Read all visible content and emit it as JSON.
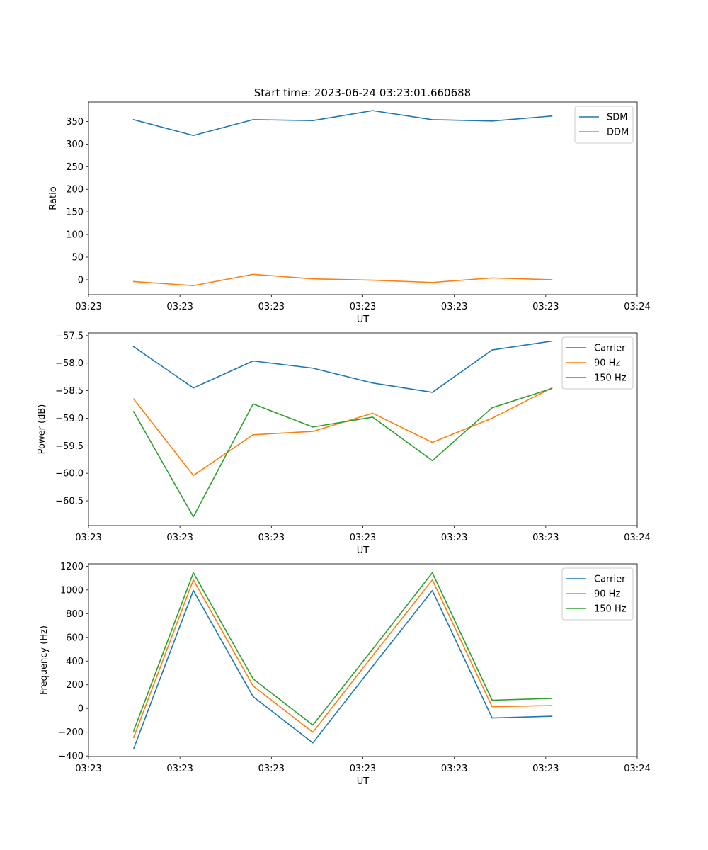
{
  "figure": {
    "title": "Start time: 2023-06-24 03:23:01.660688"
  },
  "chart_data": [
    {
      "type": "line",
      "title": "Start time: 2023-06-24 03:23:01.660688",
      "xlabel": "UT",
      "ylabel": "Ratio",
      "xlim": [
        0,
        9
      ],
      "ylim": [
        -33,
        393
      ],
      "x_ticks": [
        0,
        1.5,
        3,
        4.5,
        6,
        7.5,
        9
      ],
      "x_tick_labels": [
        "03:23",
        "03:23",
        "03:23",
        "03:23",
        "03:23",
        "03:23",
        "03:24"
      ],
      "y_ticks": [
        0,
        50,
        100,
        150,
        200,
        250,
        300,
        350
      ],
      "y_tick_labels": [
        "0",
        "50",
        "100",
        "150",
        "200",
        "250",
        "300",
        "350"
      ],
      "x": [
        0.74,
        1.72,
        2.7,
        3.68,
        4.66,
        5.64,
        6.62,
        7.6
      ],
      "series": [
        {
          "name": "SDM",
          "color": "#1f77b4",
          "values": [
            354,
            319,
            354,
            352,
            374,
            354,
            351,
            362
          ]
        },
        {
          "name": "DDM",
          "color": "#ff7f0e",
          "values": [
            -4,
            -13,
            12,
            2,
            -1,
            -6,
            4,
            0
          ]
        }
      ],
      "legend": "upper right",
      "grid": false
    },
    {
      "type": "line",
      "title": "",
      "xlabel": "UT",
      "ylabel": "Power (dB)",
      "xlim": [
        0,
        9
      ],
      "ylim": [
        -60.95,
        -57.45
      ],
      "x_ticks": [
        0,
        1.5,
        3,
        4.5,
        6,
        7.5,
        9
      ],
      "x_tick_labels": [
        "03:23",
        "03:23",
        "03:23",
        "03:23",
        "03:23",
        "03:23",
        "03:24"
      ],
      "y_ticks": [
        -60.5,
        -60.0,
        -59.5,
        -59.0,
        -58.5,
        -58.0,
        -57.5
      ],
      "y_tick_labels": [
        "−60.5",
        "−60.0",
        "−59.5",
        "−59.0",
        "−58.5",
        "−58.0",
        "−57.5"
      ],
      "x": [
        0.74,
        1.72,
        2.7,
        3.68,
        4.66,
        5.64,
        6.62,
        7.6
      ],
      "series": [
        {
          "name": "Carrier",
          "color": "#1f77b4",
          "values": [
            -57.7,
            -58.45,
            -57.96,
            -58.09,
            -58.36,
            -58.53,
            -57.76,
            -57.6
          ]
        },
        {
          "name": "90 Hz",
          "color": "#ff7f0e",
          "values": [
            -58.65,
            -60.04,
            -59.3,
            -59.24,
            -58.91,
            -59.44,
            -59.0,
            -58.45
          ]
        },
        {
          "name": "150 Hz",
          "color": "#2ca02c",
          "values": [
            -58.88,
            -60.79,
            -58.74,
            -59.16,
            -58.98,
            -59.77,
            -58.81,
            -58.46
          ]
        }
      ],
      "legend": "upper right",
      "grid": false
    },
    {
      "type": "line",
      "title": "",
      "xlabel": "UT",
      "ylabel": "Frequency (Hz)",
      "xlim": [
        0,
        9
      ],
      "ylim": [
        -405,
        1220
      ],
      "x_ticks": [
        0,
        1.5,
        3,
        4.5,
        6,
        7.5,
        9
      ],
      "x_tick_labels": [
        "03:23",
        "03:23",
        "03:23",
        "03:23",
        "03:23",
        "03:23",
        "03:24"
      ],
      "y_ticks": [
        -400,
        -200,
        0,
        200,
        400,
        600,
        800,
        1000,
        1200
      ],
      "y_tick_labels": [
        "−400",
        "−200",
        "0",
        "200",
        "400",
        "600",
        "800",
        "1000",
        "1200"
      ],
      "x": [
        0.74,
        1.72,
        2.7,
        3.68,
        4.66,
        5.64,
        6.62,
        7.6
      ],
      "series": [
        {
          "name": "Carrier",
          "color": "#1f77b4",
          "values": [
            -340,
            995,
            100,
            -290,
            355,
            995,
            -80,
            -65
          ]
        },
        {
          "name": "90 Hz",
          "color": "#ff7f0e",
          "values": [
            -245,
            1085,
            190,
            -200,
            445,
            1085,
            15,
            25
          ]
        },
        {
          "name": "150 Hz",
          "color": "#2ca02c",
          "values": [
            -190,
            1145,
            250,
            -140,
            500,
            1145,
            70,
            85
          ]
        }
      ],
      "legend": "upper right",
      "grid": false
    }
  ]
}
